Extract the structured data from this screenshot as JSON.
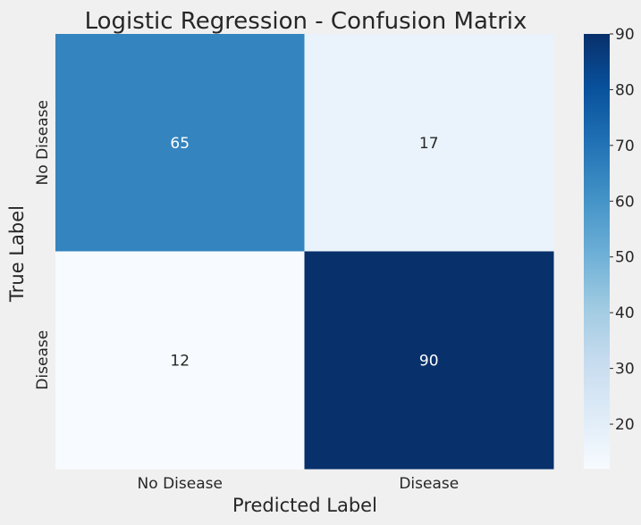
{
  "chart_data": {
    "type": "heatmap",
    "title": "Logistic Regression - Confusion Matrix",
    "xlabel": "Predicted Label",
    "ylabel": "True Label",
    "x_categories": [
      "No Disease",
      "Disease"
    ],
    "y_categories": [
      "No Disease",
      "Disease"
    ],
    "values": [
      [
        65,
        17
      ],
      [
        12,
        90
      ]
    ],
    "colormap": "Blues",
    "colorbar": {
      "range": [
        12,
        90
      ],
      "ticks": [
        20,
        30,
        40,
        50,
        60,
        70,
        80,
        90
      ]
    },
    "colors": {
      "background": "#f0f0f0",
      "low": "#f7fbff",
      "high": "#08306b",
      "text": "#262626"
    }
  }
}
